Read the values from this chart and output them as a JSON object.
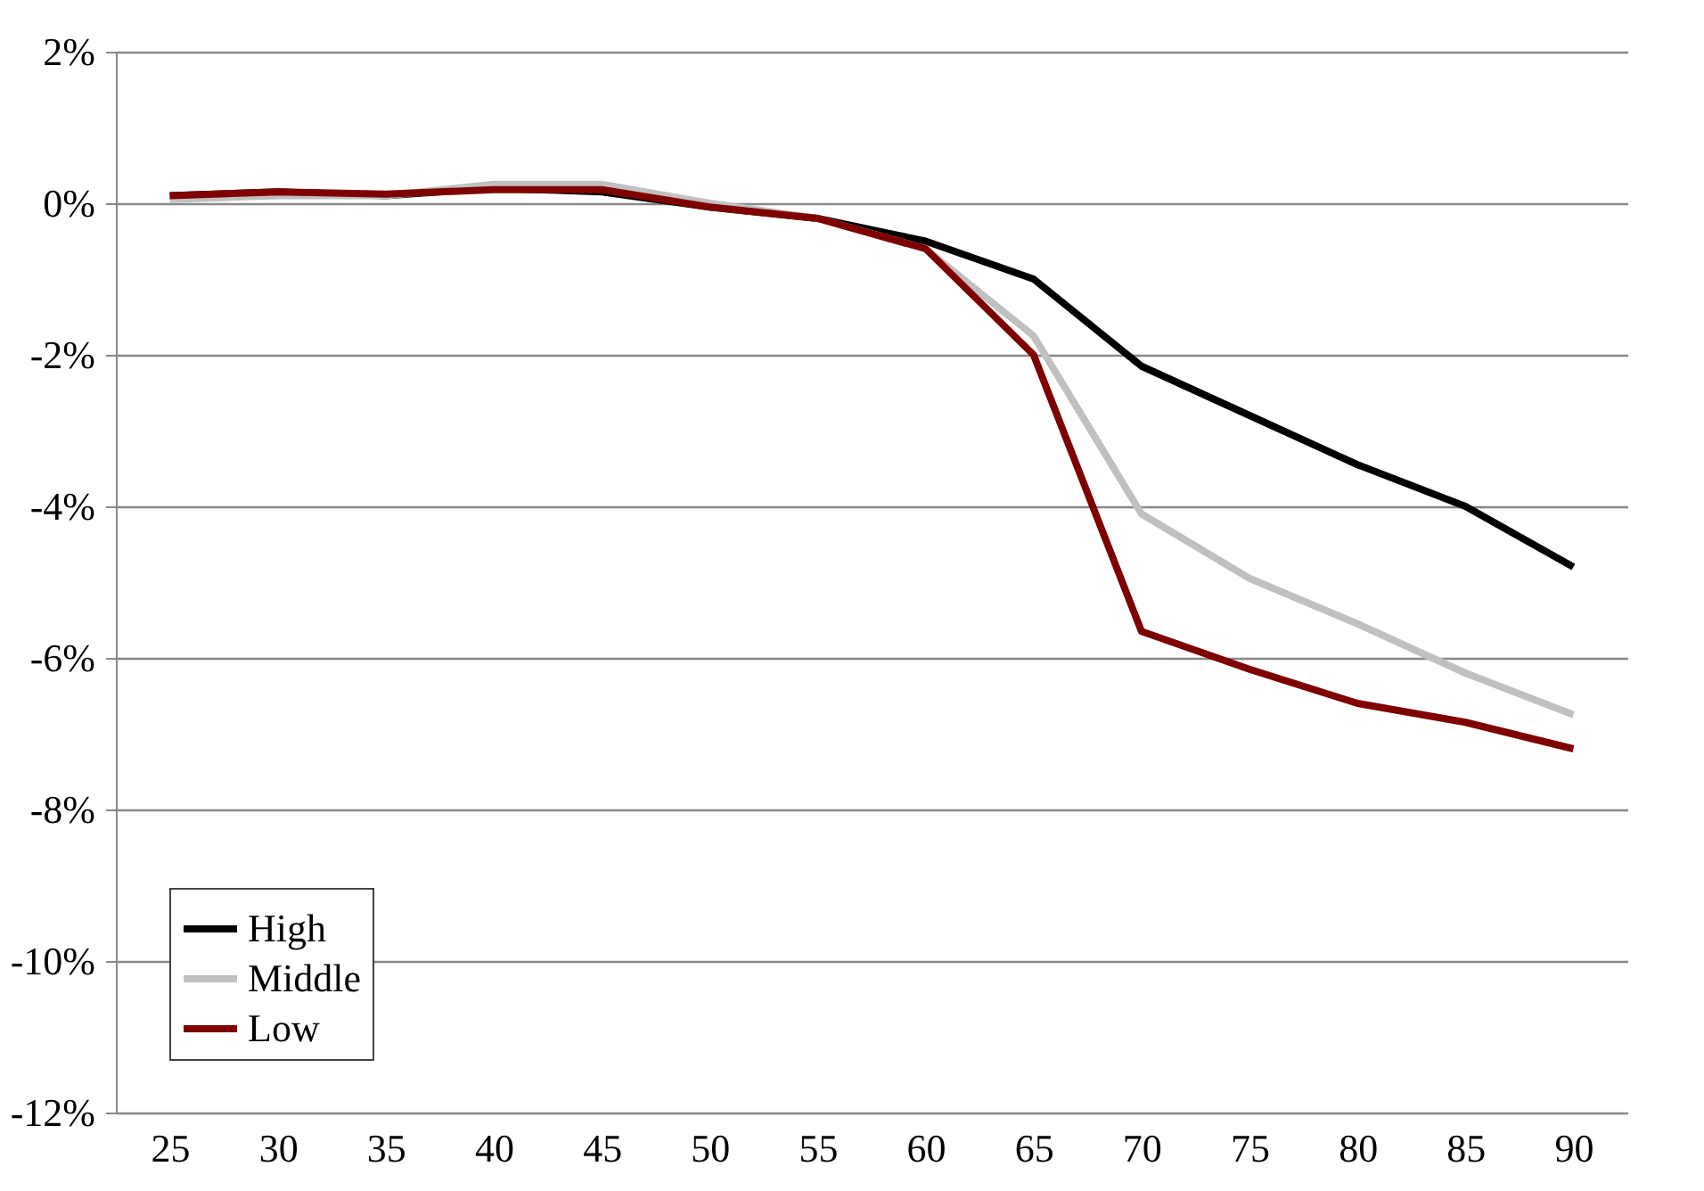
{
  "chart_data": {
    "type": "line",
    "categories": [
      "25",
      "30",
      "35",
      "40",
      "45",
      "50",
      "55",
      "60",
      "65",
      "70",
      "75",
      "80",
      "85",
      "90"
    ],
    "series": [
      {
        "name": "High",
        "color": "#000000",
        "values": [
          0.1,
          0.15,
          0.1,
          0.2,
          0.15,
          -0.05,
          -0.2,
          -0.5,
          -1.0,
          -2.15,
          -2.8,
          -3.45,
          -4.0,
          -4.8
        ]
      },
      {
        "name": "Middle",
        "color": "#c0c0c0",
        "values": [
          0.05,
          0.1,
          0.1,
          0.25,
          0.25,
          0,
          -0.2,
          -0.6,
          -1.75,
          -4.1,
          -4.95,
          -5.55,
          -6.2,
          -6.75
        ]
      },
      {
        "name": "Low",
        "color": "#7f0000",
        "values": [
          0.1,
          0.15,
          0.12,
          0.18,
          0.18,
          -0.05,
          -0.2,
          -0.6,
          -2.0,
          -5.65,
          -6.15,
          -6.6,
          -6.85,
          -7.2
        ]
      }
    ],
    "ylim": [
      -12,
      2
    ],
    "yticks": [
      {
        "value": -12,
        "label": "-12%"
      },
      {
        "value": -10,
        "label": "-10%"
      },
      {
        "value": -8,
        "label": "-8%"
      },
      {
        "value": -6,
        "label": "-6%"
      },
      {
        "value": -4,
        "label": "-4%"
      },
      {
        "value": -2,
        "label": "-2%"
      },
      {
        "value": 0,
        "label": "0%"
      },
      {
        "value": 2,
        "label": "2%"
      }
    ],
    "grid": "y",
    "legend": "bottom left",
    "marker": "none",
    "line_style": "solid"
  }
}
